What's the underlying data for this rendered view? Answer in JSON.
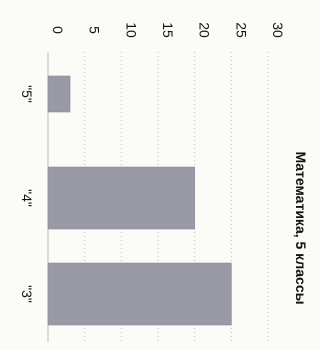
{
  "chart_data": {
    "type": "bar",
    "title": "Математика, 5 классы",
    "categories": [
      "\"5\"",
      "\"4\"",
      "\"3\""
    ],
    "values": [
      3,
      20,
      25
    ],
    "ylim": [
      0,
      30
    ],
    "y_ticks": [
      "0",
      "5",
      "10",
      "15",
      "20",
      "25",
      "30"
    ],
    "xlabel": "",
    "ylabel": "",
    "grid": true,
    "orientation": "rotated 90° clockwise",
    "bar_color": "#9a9aa6",
    "grid_color": "#bdbdc4"
  }
}
